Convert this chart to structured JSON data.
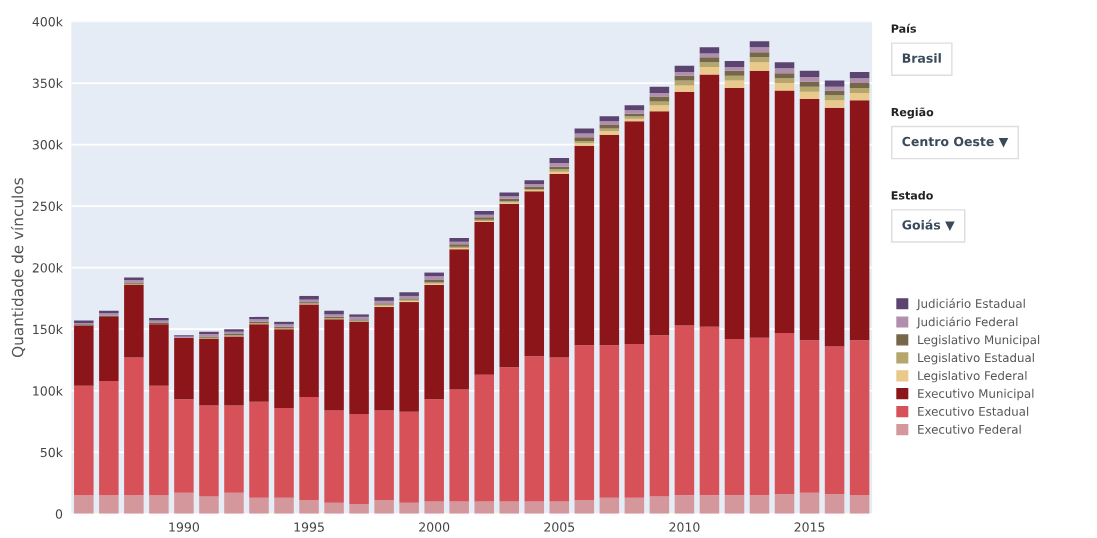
{
  "chart_data": {
    "type": "bar",
    "stacked": true,
    "ylabel": "Quantidade de vínculos",
    "x": [
      1986,
      1987,
      1988,
      1989,
      1990,
      1991,
      1992,
      1993,
      1994,
      1995,
      1996,
      1997,
      1998,
      1999,
      2000,
      2001,
      2002,
      2003,
      2004,
      2005,
      2006,
      2007,
      2008,
      2009,
      2010,
      2011,
      2012,
      2013,
      2014,
      2015,
      2016,
      2017
    ],
    "xlim": [
      1985.5,
      2017.5
    ],
    "xticks": [
      1990,
      1995,
      2000,
      2005,
      2010,
      2015
    ],
    "ylim": [
      0,
      400000
    ],
    "yticks": [
      {
        "value": 0,
        "label": "0"
      },
      {
        "value": 50000,
        "label": "50k"
      },
      {
        "value": 100000,
        "label": "100k"
      },
      {
        "value": 150000,
        "label": "150k"
      },
      {
        "value": 200000,
        "label": "200k"
      },
      {
        "value": 250000,
        "label": "250k"
      },
      {
        "value": 300000,
        "label": "300k"
      },
      {
        "value": 350000,
        "label": "350k"
      },
      {
        "value": 400000,
        "label": "400k"
      }
    ],
    "grid": "y",
    "legend": "right",
    "series": [
      {
        "name": "Executivo Federal",
        "color": "#d4979c",
        "values": [
          15000,
          15000,
          15000,
          15000,
          17000,
          14000,
          17000,
          13000,
          13000,
          11000,
          9000,
          8000,
          11000,
          9000,
          10000,
          10000,
          10000,
          10000,
          10000,
          10000,
          11000,
          13000,
          13000,
          14000,
          15000,
          15000,
          15000,
          15000,
          16000,
          17000,
          16000,
          15000
        ]
      },
      {
        "name": "Executivo Estadual",
        "color": "#d65258",
        "values": [
          89000,
          93000,
          112000,
          89000,
          76000,
          74000,
          71000,
          78000,
          73000,
          84000,
          75000,
          73000,
          73000,
          74000,
          83000,
          91000,
          103000,
          109000,
          118000,
          117000,
          126000,
          124000,
          125000,
          131000,
          138000,
          137000,
          127000,
          128000,
          131000,
          124000,
          120000,
          126000
        ]
      },
      {
        "name": "Executivo Municipal",
        "color": "#8c1519",
        "values": [
          49000,
          52000,
          59000,
          50000,
          50000,
          54000,
          56000,
          63000,
          64000,
          75000,
          74000,
          75000,
          84000,
          89000,
          93000,
          114000,
          124000,
          133000,
          134000,
          149000,
          162000,
          171000,
          181000,
          182000,
          190000,
          205000,
          204000,
          217000,
          197000,
          196000,
          194000,
          195000
        ]
      },
      {
        "name": "Legislativo Federal",
        "color": "#e9c98c",
        "values": [
          0,
          0,
          0,
          0,
          0,
          0,
          0,
          0,
          0,
          0,
          0,
          0,
          1000,
          1000,
          1000,
          1000,
          1000,
          1000,
          1000,
          2000,
          2000,
          3000,
          2000,
          5000,
          5000,
          6000,
          6000,
          7000,
          6000,
          6000,
          6000,
          6000
        ]
      },
      {
        "name": "Legislativo Estadual",
        "color": "#b5a66e",
        "values": [
          0,
          0,
          1000,
          0,
          0,
          1000,
          1000,
          1000,
          1000,
          1000,
          1000,
          1000,
          1000,
          1000,
          1000,
          1000,
          1000,
          1000,
          1000,
          2000,
          2000,
          2000,
          2000,
          3000,
          4000,
          4000,
          4000,
          4000,
          4000,
          4000,
          4000,
          4000
        ]
      },
      {
        "name": "Legislativo Municipal",
        "color": "#756748",
        "values": [
          1000,
          1000,
          1000,
          1000,
          0,
          1000,
          1000,
          1000,
          1000,
          1000,
          1000,
          1000,
          1000,
          1000,
          2000,
          2000,
          2000,
          2000,
          2000,
          2000,
          3000,
          3000,
          2000,
          4000,
          4000,
          4000,
          4000,
          4000,
          4000,
          4000,
          4000,
          4000
        ]
      },
      {
        "name": "Judiciário Federal",
        "color": "#b08eae",
        "values": [
          1000,
          2000,
          2000,
          2000,
          1000,
          2000,
          2000,
          2000,
          2000,
          2000,
          2000,
          2000,
          2000,
          2000,
          3000,
          2000,
          2000,
          2000,
          2000,
          3000,
          3000,
          3000,
          3000,
          3000,
          3000,
          3000,
          3000,
          4000,
          4000,
          4000,
          3000,
          4000
        ]
      },
      {
        "name": "Judiciário Estadual",
        "color": "#5c4470",
        "values": [
          2000,
          2000,
          2000,
          2000,
          1000,
          2000,
          2000,
          2000,
          2000,
          3000,
          3000,
          2000,
          3000,
          3000,
          3000,
          3000,
          3000,
          3000,
          3000,
          4000,
          4000,
          4000,
          4000,
          5000,
          5000,
          5000,
          5000,
          5000,
          5000,
          5000,
          5000,
          5000
        ]
      }
    ],
    "annotations": [
      "País",
      "Brasil",
      "Região",
      "Centro Oeste ▼",
      "Estado",
      "Goiás ▼"
    ]
  }
}
